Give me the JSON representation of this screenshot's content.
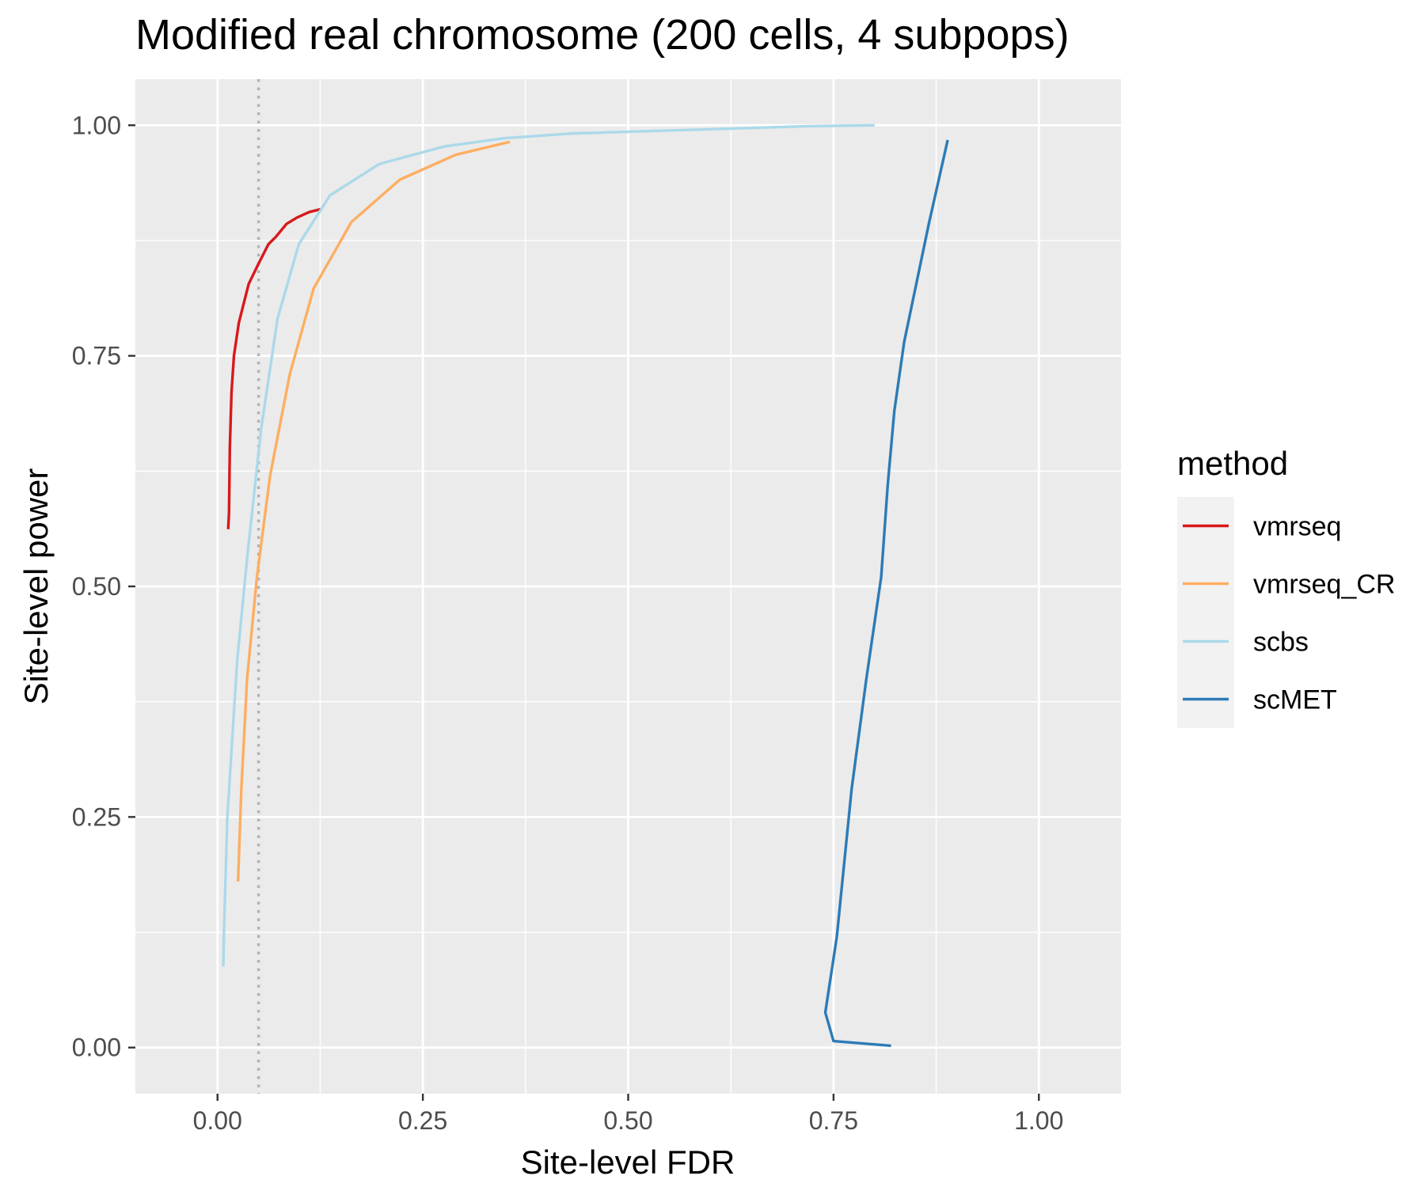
{
  "chart_data": {
    "type": "line",
    "title": "Modified real chromosome (200 cells, 4 subpops)",
    "xlabel": "Site-level FDR",
    "ylabel": "Site-level power",
    "xlim": [
      -0.1,
      1.1
    ],
    "ylim": [
      -0.05,
      1.05
    ],
    "x_ticks": [
      {
        "value": 0.0,
        "label": "0.00"
      },
      {
        "value": 0.25,
        "label": "0.25"
      },
      {
        "value": 0.5,
        "label": "0.50"
      },
      {
        "value": 0.75,
        "label": "0.75"
      },
      {
        "value": 1.0,
        "label": "1.00"
      }
    ],
    "y_ticks": [
      {
        "value": 0.0,
        "label": "0.00"
      },
      {
        "value": 0.25,
        "label": "0.25"
      },
      {
        "value": 0.5,
        "label": "0.50"
      },
      {
        "value": 0.75,
        "label": "0.75"
      },
      {
        "value": 1.0,
        "label": "1.00"
      }
    ],
    "minor_gridlines": {
      "x": [
        0.125,
        0.375,
        0.625,
        0.875
      ],
      "y": [
        0.125,
        0.375,
        0.625,
        0.875
      ]
    },
    "grid": true,
    "background_color": "#ebebeb",
    "reference_line": {
      "x": 0.05,
      "style": "dotted",
      "color": "#b3b3b3"
    },
    "legend": {
      "title": "method",
      "placement": "right"
    },
    "series": [
      {
        "name": "vmrseq",
        "color": "#d7191c",
        "points": [
          [
            0.013,
            0.562
          ],
          [
            0.014,
            0.58
          ],
          [
            0.015,
            0.65
          ],
          [
            0.017,
            0.71
          ],
          [
            0.02,
            0.75
          ],
          [
            0.026,
            0.786
          ],
          [
            0.038,
            0.828
          ],
          [
            0.05,
            0.85
          ],
          [
            0.062,
            0.871
          ],
          [
            0.071,
            0.879
          ],
          [
            0.084,
            0.893
          ],
          [
            0.097,
            0.9
          ],
          [
            0.112,
            0.906
          ],
          [
            0.126,
            0.909
          ]
        ]
      },
      {
        "name": "vmrseq_CR",
        "color": "#fdae61",
        "points": [
          [
            0.025,
            0.18
          ],
          [
            0.029,
            0.28
          ],
          [
            0.036,
            0.4
          ],
          [
            0.048,
            0.51
          ],
          [
            0.064,
            0.62
          ],
          [
            0.088,
            0.73
          ],
          [
            0.117,
            0.823
          ],
          [
            0.163,
            0.895
          ],
          [
            0.222,
            0.941
          ],
          [
            0.29,
            0.968
          ],
          [
            0.356,
            0.982
          ]
        ]
      },
      {
        "name": "scbs",
        "color": "#abd9e9",
        "points": [
          [
            0.007,
            0.088
          ],
          [
            0.008,
            0.13
          ],
          [
            0.012,
            0.25
          ],
          [
            0.019,
            0.35
          ],
          [
            0.024,
            0.42
          ],
          [
            0.036,
            0.53
          ],
          [
            0.053,
            0.67
          ],
          [
            0.073,
            0.79
          ],
          [
            0.099,
            0.871
          ],
          [
            0.137,
            0.924
          ],
          [
            0.197,
            0.958
          ],
          [
            0.276,
            0.977
          ],
          [
            0.35,
            0.986
          ],
          [
            0.43,
            0.991
          ],
          [
            0.72,
            0.999
          ],
          [
            0.8,
            1.0
          ]
        ]
      },
      {
        "name": "scMET",
        "color": "#2c7bb6",
        "points": [
          [
            0.82,
            0.002
          ],
          [
            0.75,
            0.007
          ],
          [
            0.74,
            0.038
          ],
          [
            0.754,
            0.12
          ],
          [
            0.772,
            0.28
          ],
          [
            0.79,
            0.4
          ],
          [
            0.808,
            0.51
          ],
          [
            0.816,
            0.61
          ],
          [
            0.824,
            0.69
          ],
          [
            0.836,
            0.765
          ],
          [
            0.866,
            0.893
          ],
          [
            0.889,
            0.984
          ]
        ]
      }
    ]
  }
}
